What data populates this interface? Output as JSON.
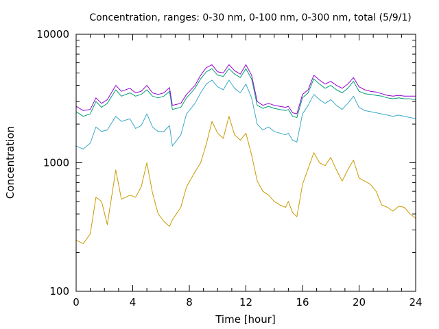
{
  "chart_data": {
    "type": "line",
    "title": "Concentration, ranges: 0-30 nm, 0-100 nm, 0-300 nm, total (5/9/1)",
    "xlabel": "Time [hour]",
    "ylabel": "Concentration",
    "xlim": [
      0,
      24
    ],
    "ylim": [
      100,
      10000
    ],
    "yscale": "log",
    "x_ticks": [
      0,
      4,
      8,
      12,
      16,
      20,
      24
    ],
    "y_ticks": [
      100,
      1000,
      10000
    ],
    "y_tick_labels": [
      "100",
      "1000",
      "10000"
    ],
    "grid": false,
    "legend": "none",
    "series": [
      {
        "color": "#c99a00",
        "x": [
          0,
          0.5,
          1.0,
          1.4,
          1.8,
          2.2,
          2.8,
          3.2,
          3.8,
          4.2,
          4.6,
          5.0,
          5.4,
          5.8,
          6.2,
          6.6,
          6.8,
          7.4,
          7.8,
          8.4,
          8.8,
          9.2,
          9.6,
          10.0,
          10.4,
          10.8,
          11.2,
          11.6,
          12.0,
          12.4,
          12.8,
          13.2,
          13.6,
          14.0,
          14.4,
          14.8,
          15.0,
          15.3,
          15.6,
          16.0,
          16.4,
          16.8,
          17.2,
          17.6,
          18.0,
          18.4,
          18.8,
          19.2,
          19.6,
          20.0,
          20.4,
          20.8,
          21.2,
          21.6,
          22.0,
          22.4,
          22.8,
          23.2,
          23.6,
          24.0
        ],
        "values": [
          250,
          235,
          280,
          540,
          500,
          330,
          880,
          520,
          560,
          540,
          650,
          1000,
          580,
          400,
          350,
          320,
          360,
          450,
          650,
          850,
          1000,
          1400,
          2100,
          1700,
          1550,
          2300,
          1650,
          1500,
          1700,
          1150,
          720,
          600,
          560,
          500,
          470,
          450,
          500,
          410,
          380,
          680,
          900,
          1200,
          1000,
          950,
          1100,
          880,
          720,
          880,
          1050,
          760,
          720,
          680,
          600,
          470,
          450,
          420,
          460,
          450,
          400,
          370
        ]
      },
      {
        "color": "#3aa8c8",
        "x": [
          0,
          0.5,
          1.0,
          1.4,
          1.8,
          2.2,
          2.8,
          3.2,
          3.8,
          4.2,
          4.6,
          5.0,
          5.4,
          5.8,
          6.2,
          6.6,
          6.8,
          7.4,
          7.8,
          8.4,
          8.8,
          9.2,
          9.6,
          10.0,
          10.4,
          10.8,
          11.2,
          11.6,
          12.0,
          12.4,
          12.8,
          13.2,
          13.6,
          14.0,
          14.4,
          14.8,
          15.0,
          15.3,
          15.6,
          16.0,
          16.4,
          16.8,
          17.2,
          17.6,
          18.0,
          18.4,
          18.8,
          19.2,
          19.6,
          20.0,
          20.4,
          20.8,
          21.2,
          21.6,
          22.0,
          22.4,
          22.8,
          23.2,
          23.6,
          24.0
        ],
        "values": [
          1350,
          1280,
          1420,
          1900,
          1750,
          1800,
          2300,
          2100,
          2200,
          1850,
          1950,
          2400,
          1900,
          1750,
          1750,
          1950,
          1350,
          1650,
          2400,
          2900,
          3500,
          4100,
          4400,
          3900,
          3700,
          4400,
          3800,
          3500,
          4100,
          3200,
          2000,
          1800,
          1900,
          1750,
          1700,
          1650,
          1700,
          1500,
          1450,
          2400,
          2800,
          3400,
          3100,
          2900,
          3100,
          2800,
          2600,
          2900,
          3300,
          2700,
          2550,
          2500,
          2450,
          2400,
          2350,
          2300,
          2350,
          2300,
          2250,
          2200
        ]
      },
      {
        "color": "#009e73",
        "x": [
          0,
          0.5,
          1.0,
          1.4,
          1.8,
          2.2,
          2.8,
          3.2,
          3.8,
          4.2,
          4.6,
          5.0,
          5.4,
          5.8,
          6.2,
          6.6,
          6.8,
          7.4,
          7.8,
          8.4,
          8.8,
          9.2,
          9.6,
          10.0,
          10.4,
          10.8,
          11.2,
          11.6,
          12.0,
          12.4,
          12.8,
          13.2,
          13.6,
          14.0,
          14.4,
          14.8,
          15.0,
          15.3,
          15.6,
          16.0,
          16.4,
          16.8,
          17.2,
          17.6,
          18.0,
          18.4,
          18.8,
          19.2,
          19.6,
          20.0,
          20.4,
          20.8,
          21.2,
          21.6,
          22.0,
          22.4,
          22.8,
          23.2,
          23.6,
          24.0
        ],
        "values": [
          2500,
          2300,
          2400,
          3000,
          2700,
          2900,
          3700,
          3300,
          3500,
          3300,
          3400,
          3700,
          3300,
          3200,
          3300,
          3600,
          2600,
          2700,
          3200,
          3800,
          4500,
          5100,
          5400,
          4800,
          4700,
          5400,
          4900,
          4600,
          5400,
          4500,
          2800,
          2650,
          2750,
          2650,
          2600,
          2550,
          2600,
          2300,
          2250,
          3200,
          3500,
          4500,
          4100,
          3800,
          4000,
          3700,
          3500,
          3800,
          4300,
          3600,
          3450,
          3400,
          3350,
          3300,
          3200,
          3150,
          3200,
          3150,
          3150,
          3100
        ]
      },
      {
        "color": "#9400d3",
        "x": [
          0,
          0.5,
          1.0,
          1.4,
          1.8,
          2.2,
          2.8,
          3.2,
          3.8,
          4.2,
          4.6,
          5.0,
          5.4,
          5.8,
          6.2,
          6.6,
          6.8,
          7.4,
          7.8,
          8.4,
          8.8,
          9.2,
          9.6,
          10.0,
          10.4,
          10.8,
          11.2,
          11.6,
          12.0,
          12.4,
          12.8,
          13.2,
          13.6,
          14.0,
          14.4,
          14.8,
          15.0,
          15.3,
          15.6,
          16.0,
          16.4,
          16.8,
          17.2,
          17.6,
          18.0,
          18.4,
          18.8,
          19.2,
          19.6,
          20.0,
          20.4,
          20.8,
          21.2,
          21.6,
          22.0,
          22.4,
          22.8,
          23.2,
          23.6,
          24.0
        ],
        "values": [
          2750,
          2550,
          2600,
          3200,
          2900,
          3100,
          4000,
          3600,
          3800,
          3500,
          3600,
          4000,
          3500,
          3400,
          3500,
          3850,
          2800,
          2900,
          3400,
          4000,
          4800,
          5500,
          5800,
          5100,
          5000,
          5800,
          5200,
          4900,
          5800,
          4800,
          3000,
          2800,
          2900,
          2800,
          2750,
          2700,
          2750,
          2450,
          2400,
          3400,
          3700,
          4800,
          4400,
          4100,
          4300,
          4000,
          3800,
          4100,
          4600,
          3900,
          3700,
          3600,
          3550,
          3450,
          3350,
          3300,
          3350,
          3300,
          3300,
          3300
        ]
      }
    ]
  }
}
